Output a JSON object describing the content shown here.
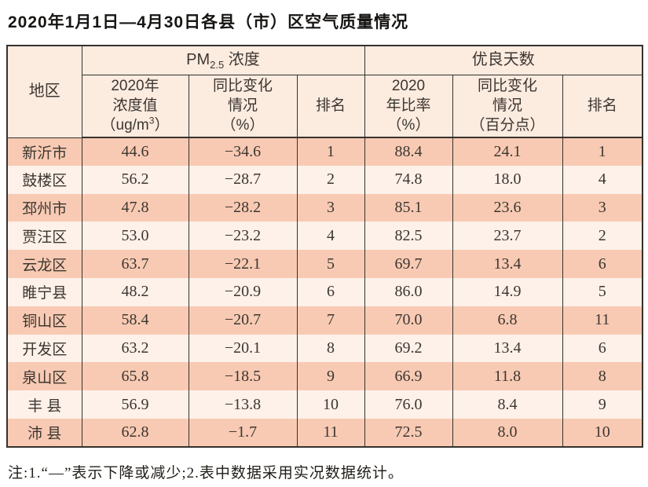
{
  "title": "2020年1月1日—4月30日各县（市）区空气质量情况",
  "colors": {
    "header_bg": "#fcebdf",
    "row_odd_bg": "#f8cab3",
    "row_even_bg": "#fdf1e9",
    "border": "#35322e",
    "text": "#3c3631"
  },
  "table": {
    "header": {
      "region": "地区",
      "group_pm": {
        "prefix": "PM",
        "sub": "2.5",
        "suffix": " 浓度"
      },
      "group_good": "优良天数",
      "pm_value": {
        "l1": "2020年",
        "l2": "浓度值",
        "l3a": "（ug/m",
        "l3sup": "3",
        "l3b": "）"
      },
      "pm_change": {
        "l1": "同比变化",
        "l2": "情况",
        "l3": "（%）"
      },
      "pm_rank": "排名",
      "good_rate": {
        "l1": "2020",
        "l2": "年比率",
        "l3": "（%）"
      },
      "good_change": {
        "l1": "同比变化",
        "l2": "情况",
        "l3": "（百分点）"
      },
      "good_rank": "排名"
    },
    "rows": [
      [
        "新沂市",
        "44.6",
        "−34.6",
        "1",
        "88.4",
        "24.1",
        "1"
      ],
      [
        "鼓楼区",
        "56.2",
        "−28.7",
        "2",
        "74.8",
        "18.0",
        "4"
      ],
      [
        "邳州市",
        "47.8",
        "−28.2",
        "3",
        "85.1",
        "23.6",
        "3"
      ],
      [
        "贾汪区",
        "53.0",
        "−23.2",
        "4",
        "82.5",
        "23.7",
        "2"
      ],
      [
        "云龙区",
        "63.7",
        "−22.1",
        "5",
        "69.7",
        "13.4",
        "6"
      ],
      [
        "睢宁县",
        "48.2",
        "−20.9",
        "6",
        "86.0",
        "14.9",
        "5"
      ],
      [
        "铜山区",
        "58.4",
        "−20.7",
        "7",
        "70.0",
        "6.8",
        "11"
      ],
      [
        "开发区",
        "63.2",
        "−20.1",
        "8",
        "69.2",
        "13.4",
        "6"
      ],
      [
        "泉山区",
        "65.8",
        "−18.5",
        "9",
        "66.9",
        "11.8",
        "8"
      ],
      [
        "丰 县",
        "56.9",
        "−13.8",
        "10",
        "76.0",
        "8.4",
        "9"
      ],
      [
        "沛 县",
        "62.8",
        "−1.7",
        "11",
        "72.5",
        "8.0",
        "10"
      ]
    ]
  },
  "note": "注:1.“—”表示下降或减少;2.表中数据采用实况数据统计。"
}
